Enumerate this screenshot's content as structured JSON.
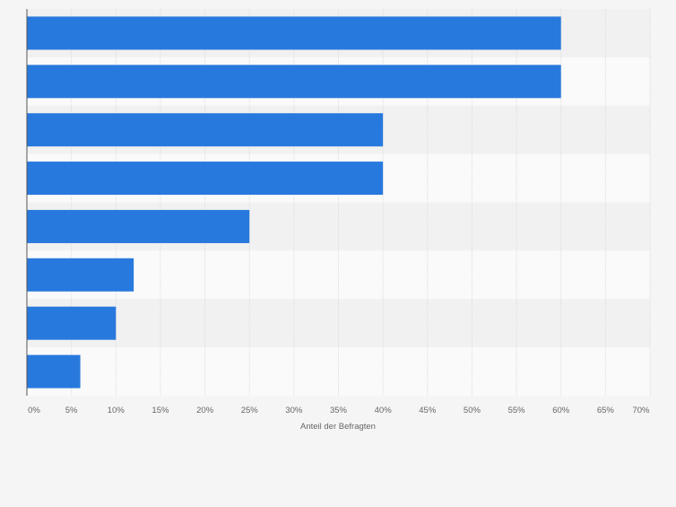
{
  "chart_data": {
    "type": "bar",
    "orientation": "horizontal",
    "title": "",
    "categories": [
      "",
      "",
      "",
      "",
      "",
      "",
      "",
      ""
    ],
    "values": [
      60,
      60,
      40,
      40,
      25,
      12,
      10,
      6
    ],
    "xlabel": "Anteil der Befragten",
    "ylabel": "",
    "xlim": [
      0,
      70
    ],
    "xticks": [
      0,
      5,
      10,
      15,
      20,
      25,
      30,
      35,
      40,
      45,
      50,
      55,
      60,
      65,
      70
    ],
    "tick_labels": [
      "0%",
      "5%",
      "10%",
      "15%",
      "20%",
      "25%",
      "30%",
      "35%",
      "40%",
      "45%",
      "50%",
      "55%",
      "60%",
      "65%",
      "70%"
    ],
    "grid": true,
    "colors": {
      "bar": "#2879dd",
      "band_dark": "#f1f1f1",
      "band_light": "#fafafa",
      "grid": "#dcdcdc",
      "axis": "#555555",
      "tick_text": "#666666"
    }
  }
}
